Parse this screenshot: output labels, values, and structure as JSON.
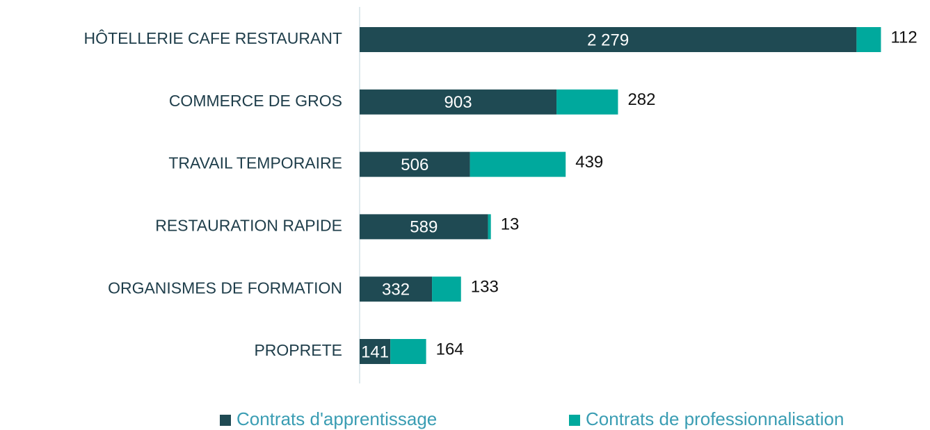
{
  "chart_data": {
    "type": "stacked_barh",
    "categories": [
      "HÔTELLERIE CAFE RESTAURANT",
      "COMMERCE DE GROS",
      "TRAVAIL TEMPORAIRE",
      "RESTAURATION RAPIDE",
      "ORGANISMES DE FORMATION",
      "PROPRETE"
    ],
    "series": [
      {
        "name": "Contrats d'apprentissage",
        "color": "#1f4a53",
        "values": [
          2279,
          903,
          506,
          589,
          332,
          141
        ],
        "value_labels": [
          "2 279",
          "903",
          "506",
          "589",
          "332",
          "141"
        ]
      },
      {
        "name": "Contrats de professionnalisation",
        "color": "#00a99d",
        "values": [
          112,
          282,
          439,
          13,
          133,
          164
        ]
      }
    ],
    "xlim": [
      0,
      2600
    ]
  }
}
